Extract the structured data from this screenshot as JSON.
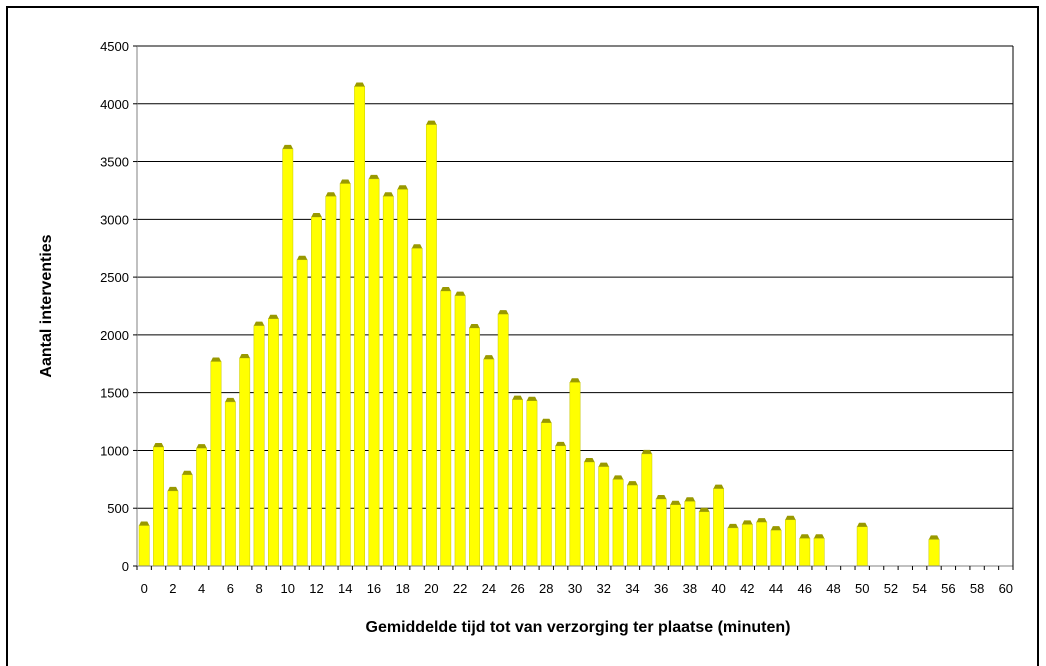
{
  "chart_data": {
    "type": "bar",
    "title": "",
    "xlabel": "Gemiddelde tijd tot van verzorging ter plaatse (minuten)",
    "ylabel": "Aantal interventies",
    "xlim": [
      0,
      60
    ],
    "ylim": [
      0,
      4500
    ],
    "x_ticks": [
      0,
      2,
      4,
      6,
      8,
      10,
      12,
      14,
      16,
      18,
      20,
      22,
      24,
      26,
      28,
      30,
      32,
      34,
      36,
      38,
      40,
      42,
      44,
      46,
      48,
      50,
      52,
      54,
      56,
      58,
      60
    ],
    "y_ticks": [
      0,
      500,
      1000,
      1500,
      2000,
      2500,
      3000,
      3500,
      4000,
      4500
    ],
    "grid": "horizontal",
    "legend": "none",
    "bar_color": "#ffff00",
    "bar_top_color": "#999900",
    "points": [
      {
        "x": 0,
        "y": 350
      },
      {
        "x": 1,
        "y": 1030
      },
      {
        "x": 2,
        "y": 650
      },
      {
        "x": 3,
        "y": 790
      },
      {
        "x": 4,
        "y": 1020
      },
      {
        "x": 5,
        "y": 1770
      },
      {
        "x": 6,
        "y": 1420
      },
      {
        "x": 7,
        "y": 1800
      },
      {
        "x": 8,
        "y": 2080
      },
      {
        "x": 9,
        "y": 2140
      },
      {
        "x": 10,
        "y": 3610
      },
      {
        "x": 11,
        "y": 2650
      },
      {
        "x": 12,
        "y": 3020
      },
      {
        "x": 13,
        "y": 3200
      },
      {
        "x": 14,
        "y": 3310
      },
      {
        "x": 15,
        "y": 4150
      },
      {
        "x": 16,
        "y": 3350
      },
      {
        "x": 17,
        "y": 3200
      },
      {
        "x": 18,
        "y": 3260
      },
      {
        "x": 19,
        "y": 2750
      },
      {
        "x": 20,
        "y": 3820
      },
      {
        "x": 21,
        "y": 2380
      },
      {
        "x": 22,
        "y": 2340
      },
      {
        "x": 23,
        "y": 2060
      },
      {
        "x": 24,
        "y": 1790
      },
      {
        "x": 25,
        "y": 2180
      },
      {
        "x": 26,
        "y": 1440
      },
      {
        "x": 27,
        "y": 1430
      },
      {
        "x": 28,
        "y": 1240
      },
      {
        "x": 29,
        "y": 1040
      },
      {
        "x": 30,
        "y": 1590
      },
      {
        "x": 31,
        "y": 900
      },
      {
        "x": 32,
        "y": 860
      },
      {
        "x": 33,
        "y": 750
      },
      {
        "x": 34,
        "y": 700
      },
      {
        "x": 35,
        "y": 970
      },
      {
        "x": 36,
        "y": 580
      },
      {
        "x": 37,
        "y": 530
      },
      {
        "x": 38,
        "y": 560
      },
      {
        "x": 39,
        "y": 470
      },
      {
        "x": 40,
        "y": 670
      },
      {
        "x": 41,
        "y": 330
      },
      {
        "x": 42,
        "y": 360
      },
      {
        "x": 43,
        "y": 380
      },
      {
        "x": 44,
        "y": 310
      },
      {
        "x": 45,
        "y": 400
      },
      {
        "x": 46,
        "y": 240
      },
      {
        "x": 47,
        "y": 240
      },
      {
        "x": 50,
        "y": 340
      },
      {
        "x": 55,
        "y": 230
      }
    ]
  }
}
